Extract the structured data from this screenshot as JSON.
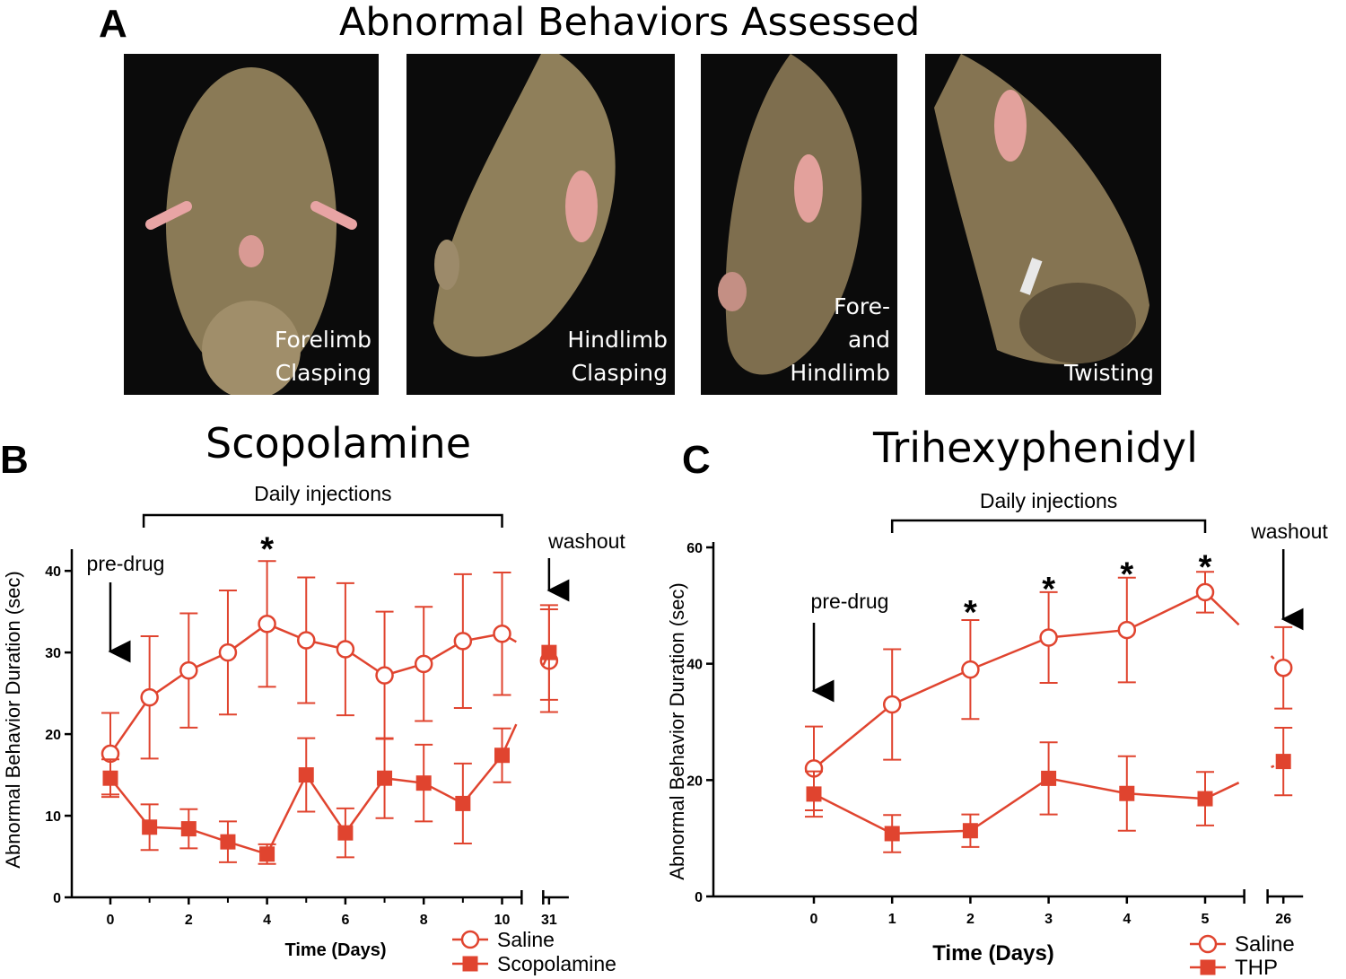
{
  "panel_a": {
    "letter": "A",
    "title": "Abnormal Behaviors Assessed",
    "photos": [
      {
        "caption": "Forelimb\nClasping",
        "icon": "mouse-photo-icon"
      },
      {
        "caption": "Hindlimb\nClasping",
        "icon": "mouse-photo-icon"
      },
      {
        "caption": "Fore-\nand\nHindlimb",
        "icon": "mouse-photo-icon"
      },
      {
        "caption": "Twisting",
        "icon": "mouse-photo-icon"
      }
    ]
  },
  "colors": {
    "series": "#e0442f",
    "text": "#000000",
    "photo_bg": "#0b0b0b"
  },
  "chart_data": [
    {
      "type": "line",
      "letter": "B",
      "title": "Scopolamine",
      "xlabel": "Time (Days)",
      "ylabel": "Abnormal Behavior Duration (sec)",
      "ylim": [
        0,
        42
      ],
      "yticks": [
        0,
        10,
        20,
        30,
        40
      ],
      "xlim": [
        -1,
        12.2
      ],
      "xticks": [
        0,
        2,
        4,
        6,
        8,
        10
      ],
      "break_label": "31",
      "break_start": 10.5,
      "break_x": 11.2,
      "injection_label": "Daily injections",
      "injection_range": [
        0.85,
        10
      ],
      "predrug_label": "pre-drug",
      "predrug_x": 0,
      "washout_label": "washout",
      "series": [
        {
          "name": "Saline",
          "marker": "open-circle",
          "x": [
            0,
            1,
            2,
            3,
            4,
            5,
            6,
            7,
            8,
            9,
            10,
            "31"
          ],
          "values": [
            17.6,
            24.5,
            27.8,
            30.0,
            33.5,
            31.5,
            30.4,
            27.2,
            28.6,
            31.4,
            32.3,
            29.0
          ],
          "errors": [
            5.0,
            7.5,
            7.0,
            7.6,
            7.7,
            7.7,
            8.1,
            7.8,
            7.0,
            8.2,
            7.5,
            6.3
          ]
        },
        {
          "name": "Scopolamine",
          "marker": "filled-square",
          "x": [
            0,
            1,
            2,
            3,
            4,
            5,
            6,
            7,
            8,
            9,
            10,
            "31"
          ],
          "values": [
            14.6,
            8.6,
            8.4,
            6.8,
            5.3,
            15.0,
            7.9,
            14.6,
            14.0,
            11.5,
            17.4,
            30.0
          ],
          "errors": [
            2.3,
            2.8,
            2.4,
            2.5,
            1.2,
            4.5,
            3.0,
            4.9,
            4.7,
            4.9,
            3.3,
            5.8
          ]
        }
      ],
      "annotations": [
        {
          "x": 4,
          "y": 43.5,
          "text": "*"
        }
      ],
      "legend": [
        {
          "label": "Saline",
          "marker": "open-circle"
        },
        {
          "label": "Scopolamine",
          "marker": "filled-square"
        }
      ],
      "legend_position": "bottom-right"
    },
    {
      "type": "line",
      "letter": "C",
      "title": "Trihexyphenidyl",
      "xlabel": "Time (Days)",
      "ylabel": "Abnormal Behavior Duration (sec)",
      "ylim": [
        0,
        60
      ],
      "yticks": [
        0,
        20,
        40,
        60
      ],
      "xlim": [
        -1,
        6.25
      ],
      "xticks": [
        0,
        1,
        2,
        3,
        4,
        5
      ],
      "break_label": "26",
      "break_start": 5.5,
      "break_x": 6.0,
      "injection_label": "Daily injections",
      "injection_range": [
        1,
        5
      ],
      "predrug_label": "pre-drug",
      "predrug_x": 0,
      "washout_label": "washout",
      "series": [
        {
          "name": "Saline",
          "marker": "open-circle",
          "x": [
            0,
            1,
            2,
            3,
            4,
            5,
            "26"
          ],
          "values": [
            22.0,
            33.0,
            39.0,
            44.5,
            45.8,
            52.3,
            39.3
          ],
          "errors": [
            7.2,
            9.5,
            8.5,
            7.8,
            9.0,
            3.5,
            7.0
          ]
        },
        {
          "name": "THP",
          "marker": "filled-square",
          "x": [
            0,
            1,
            2,
            3,
            4,
            5,
            "26"
          ],
          "values": [
            17.6,
            10.8,
            11.3,
            20.3,
            17.7,
            16.8,
            23.2
          ],
          "errors": [
            3.9,
            3.2,
            2.8,
            6.2,
            6.4,
            4.6,
            5.8
          ]
        }
      ],
      "annotations": [
        {
          "x": 2,
          "y": 50.0,
          "text": "*"
        },
        {
          "x": 3,
          "y": 54.0,
          "text": "*"
        },
        {
          "x": 4,
          "y": 56.5,
          "text": "*"
        },
        {
          "x": 5,
          "y": 57.8,
          "text": "*"
        }
      ],
      "legend": [
        {
          "label": "Saline",
          "marker": "open-circle"
        },
        {
          "label": "THP",
          "marker": "filled-square"
        }
      ],
      "legend_position": "bottom-right"
    }
  ]
}
